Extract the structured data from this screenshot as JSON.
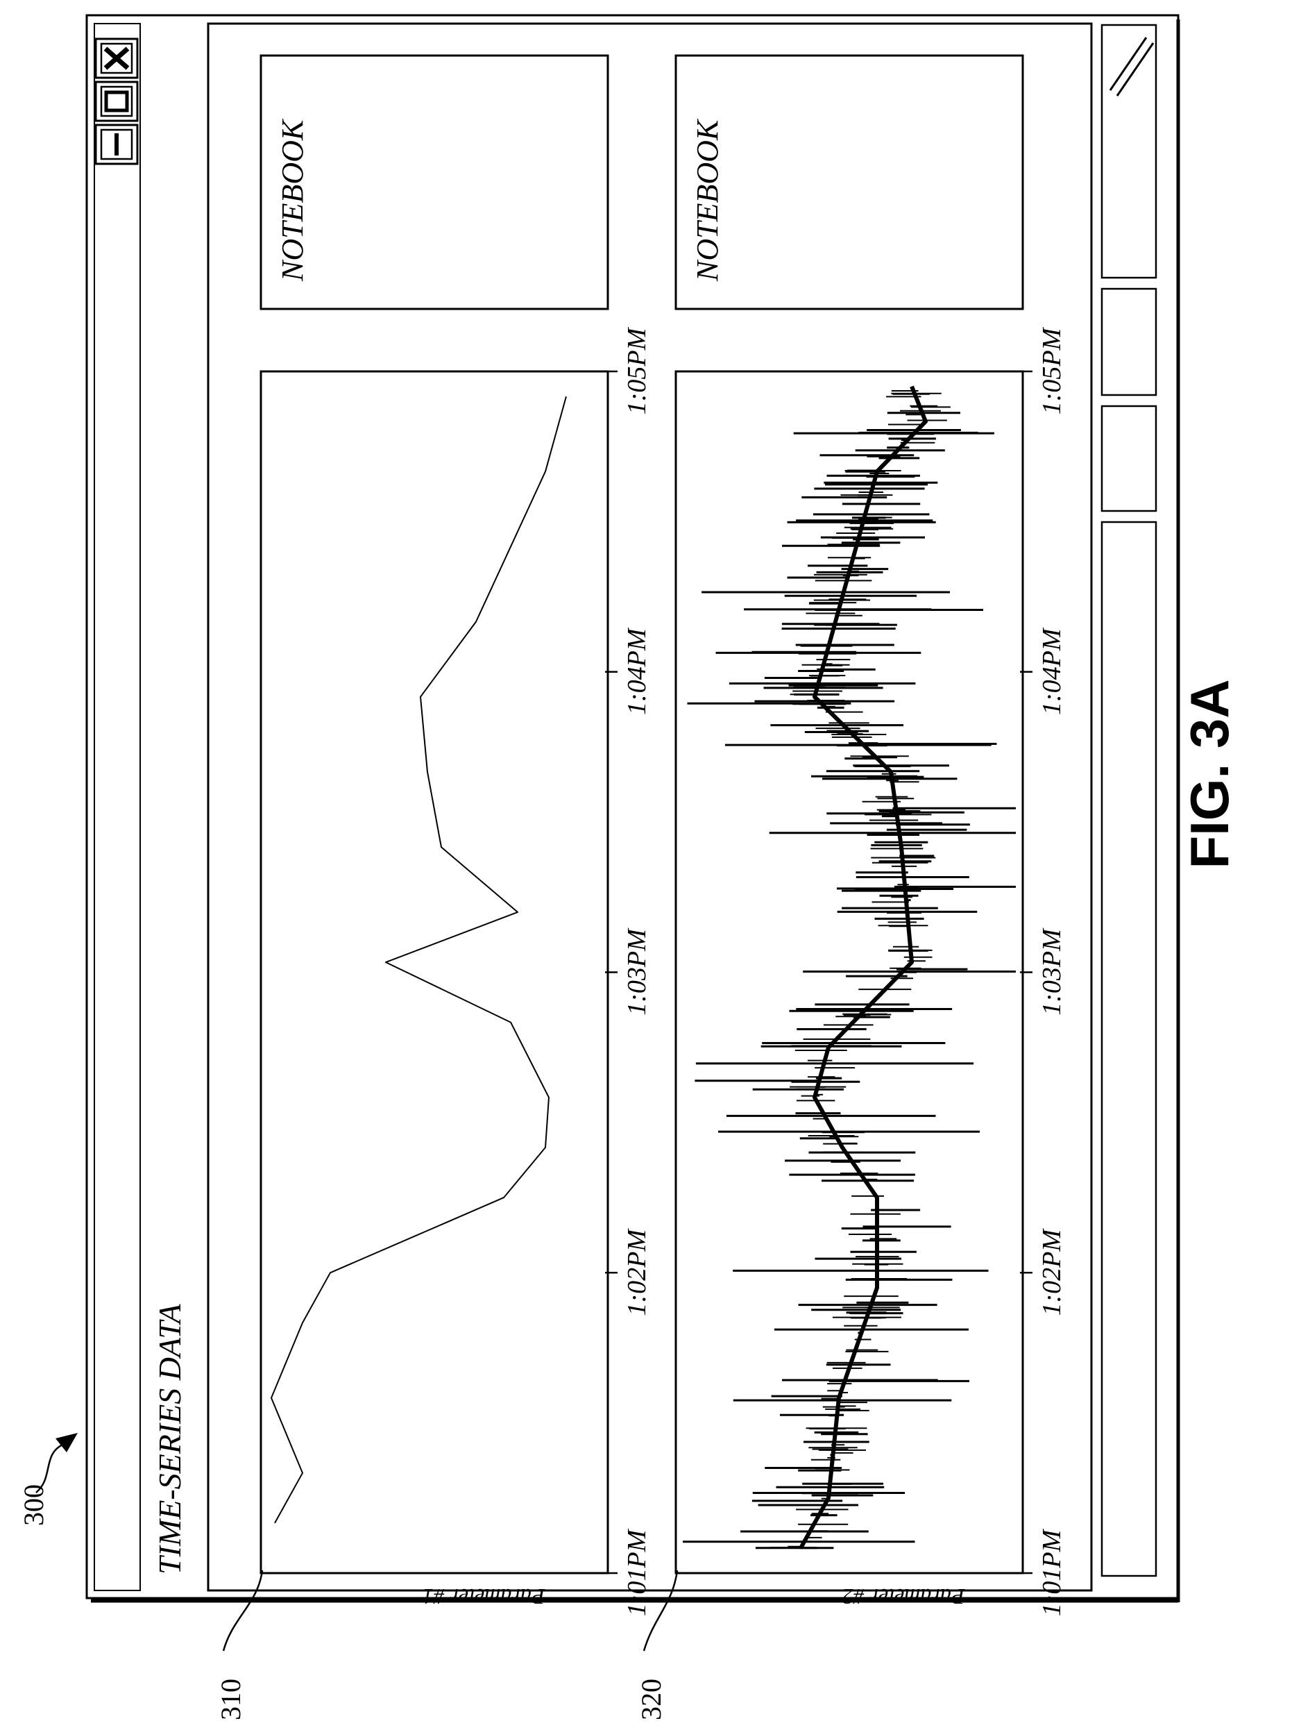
{
  "figure_label": "FIG. 3A",
  "refs": {
    "window": "300",
    "panel_1": "310",
    "panel_2": "320"
  },
  "window": {
    "title": "TIME-SERIES DATA",
    "controls": [
      "close-icon",
      "maximize-icon",
      "minimize-icon"
    ]
  },
  "notebooks": [
    {
      "label": "NOTEBOOK"
    },
    {
      "label": "NOTEBOOK"
    }
  ],
  "chart_data": [
    {
      "type": "line",
      "ylabel": "Parameter #1",
      "x_ticks": [
        "1:01PM",
        "1:02PM",
        "1:03PM",
        "1:04PM",
        "1:05PM"
      ],
      "xlim": [
        "1:01PM",
        "1:05PM"
      ],
      "series": [
        {
          "x": [
            "1:01:10",
            "1:01:20",
            "1:01:35",
            "1:01:50",
            "1:02:00",
            "1:02:15",
            "1:02:25",
            "1:02:35",
            "1:02:50",
            "1:03:02",
            "1:03:12",
            "1:03:25",
            "1:03:40",
            "1:03:55",
            "1:04:10",
            "1:04:25",
            "1:04:40",
            "1:04:55"
          ],
          "y": [
            0.04,
            0.12,
            0.03,
            0.12,
            0.2,
            0.7,
            0.82,
            0.83,
            0.72,
            0.36,
            0.74,
            0.52,
            0.48,
            0.46,
            0.62,
            0.72,
            0.82,
            0.88
          ]
        }
      ]
    },
    {
      "type": "line",
      "ylabel": "Parameter #2",
      "x_ticks": [
        "1:01PM",
        "1:02PM",
        "1:03PM",
        "1:04PM",
        "1:05PM"
      ],
      "xlim": [
        "1:01PM",
        "1:05PM"
      ],
      "series": [
        {
          "x": [
            "1:01:05",
            "1:01:15",
            "1:01:35",
            "1:01:57",
            "1:02:15",
            "1:02:25",
            "1:02:35",
            "1:02:45",
            "1:03:02",
            "1:03:25",
            "1:03:40",
            "1:03:55",
            "1:04:15",
            "1:04:40",
            "1:04:50",
            "1:04:57"
          ],
          "y": [
            0.36,
            0.44,
            0.47,
            0.58,
            0.58,
            0.48,
            0.4,
            0.44,
            0.68,
            0.65,
            0.62,
            0.4,
            0.48,
            0.58,
            0.72,
            0.68
          ]
        }
      ]
    }
  ],
  "status_bar": {
    "segments": [
      "",
      "",
      "",
      ""
    ]
  }
}
